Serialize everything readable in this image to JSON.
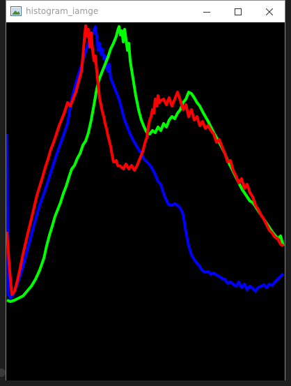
{
  "window": {
    "title": "histogram_iamge",
    "icons": {
      "app": "image-window-icon",
      "minimize": "minimize-icon",
      "maximize": "maximize-icon",
      "close": "close-icon"
    }
  },
  "colors": {
    "background": "#000000",
    "red": "#ff0000",
    "green": "#00ff00",
    "blue": "#0000ff"
  }
}
